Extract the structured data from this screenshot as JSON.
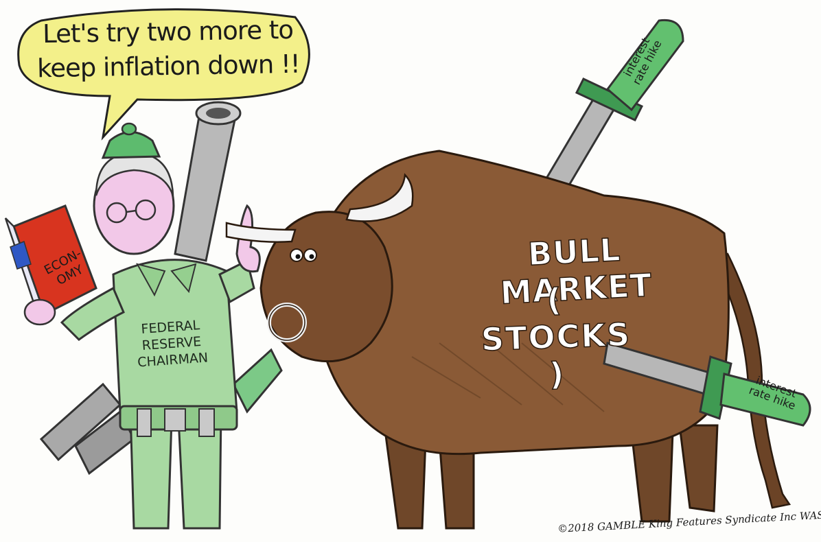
{
  "speech_bubble": {
    "line1": "Let's try two more to",
    "line2": "keep inflation down !!"
  },
  "chairman_shirt": [
    "FEDERAL",
    "RESERVE",
    "CHAIRMAN"
  ],
  "book_cover": [
    "ECON-",
    "OMY"
  ],
  "bull_label": {
    "line1": "BULL MARKET",
    "line2": "( STOCKS )"
  },
  "sword_handle_top": [
    "interest",
    "rate hike"
  ],
  "sword_handle_bottom": [
    "interest",
    "rate hike"
  ],
  "signature": "©2018 GAMBLE King Features Syndicate Inc WAS",
  "colors": {
    "bubble_fill": "#f3f08a",
    "chairman_green": "#a8d9a2",
    "hat_green": "#5dbb6e",
    "bull_brown": "#8a5a36",
    "bull_dark": "#4a2d18",
    "sword_grey": "#b7b7b7",
    "handle_green": "#62c06f",
    "book_red": "#d8341f"
  }
}
